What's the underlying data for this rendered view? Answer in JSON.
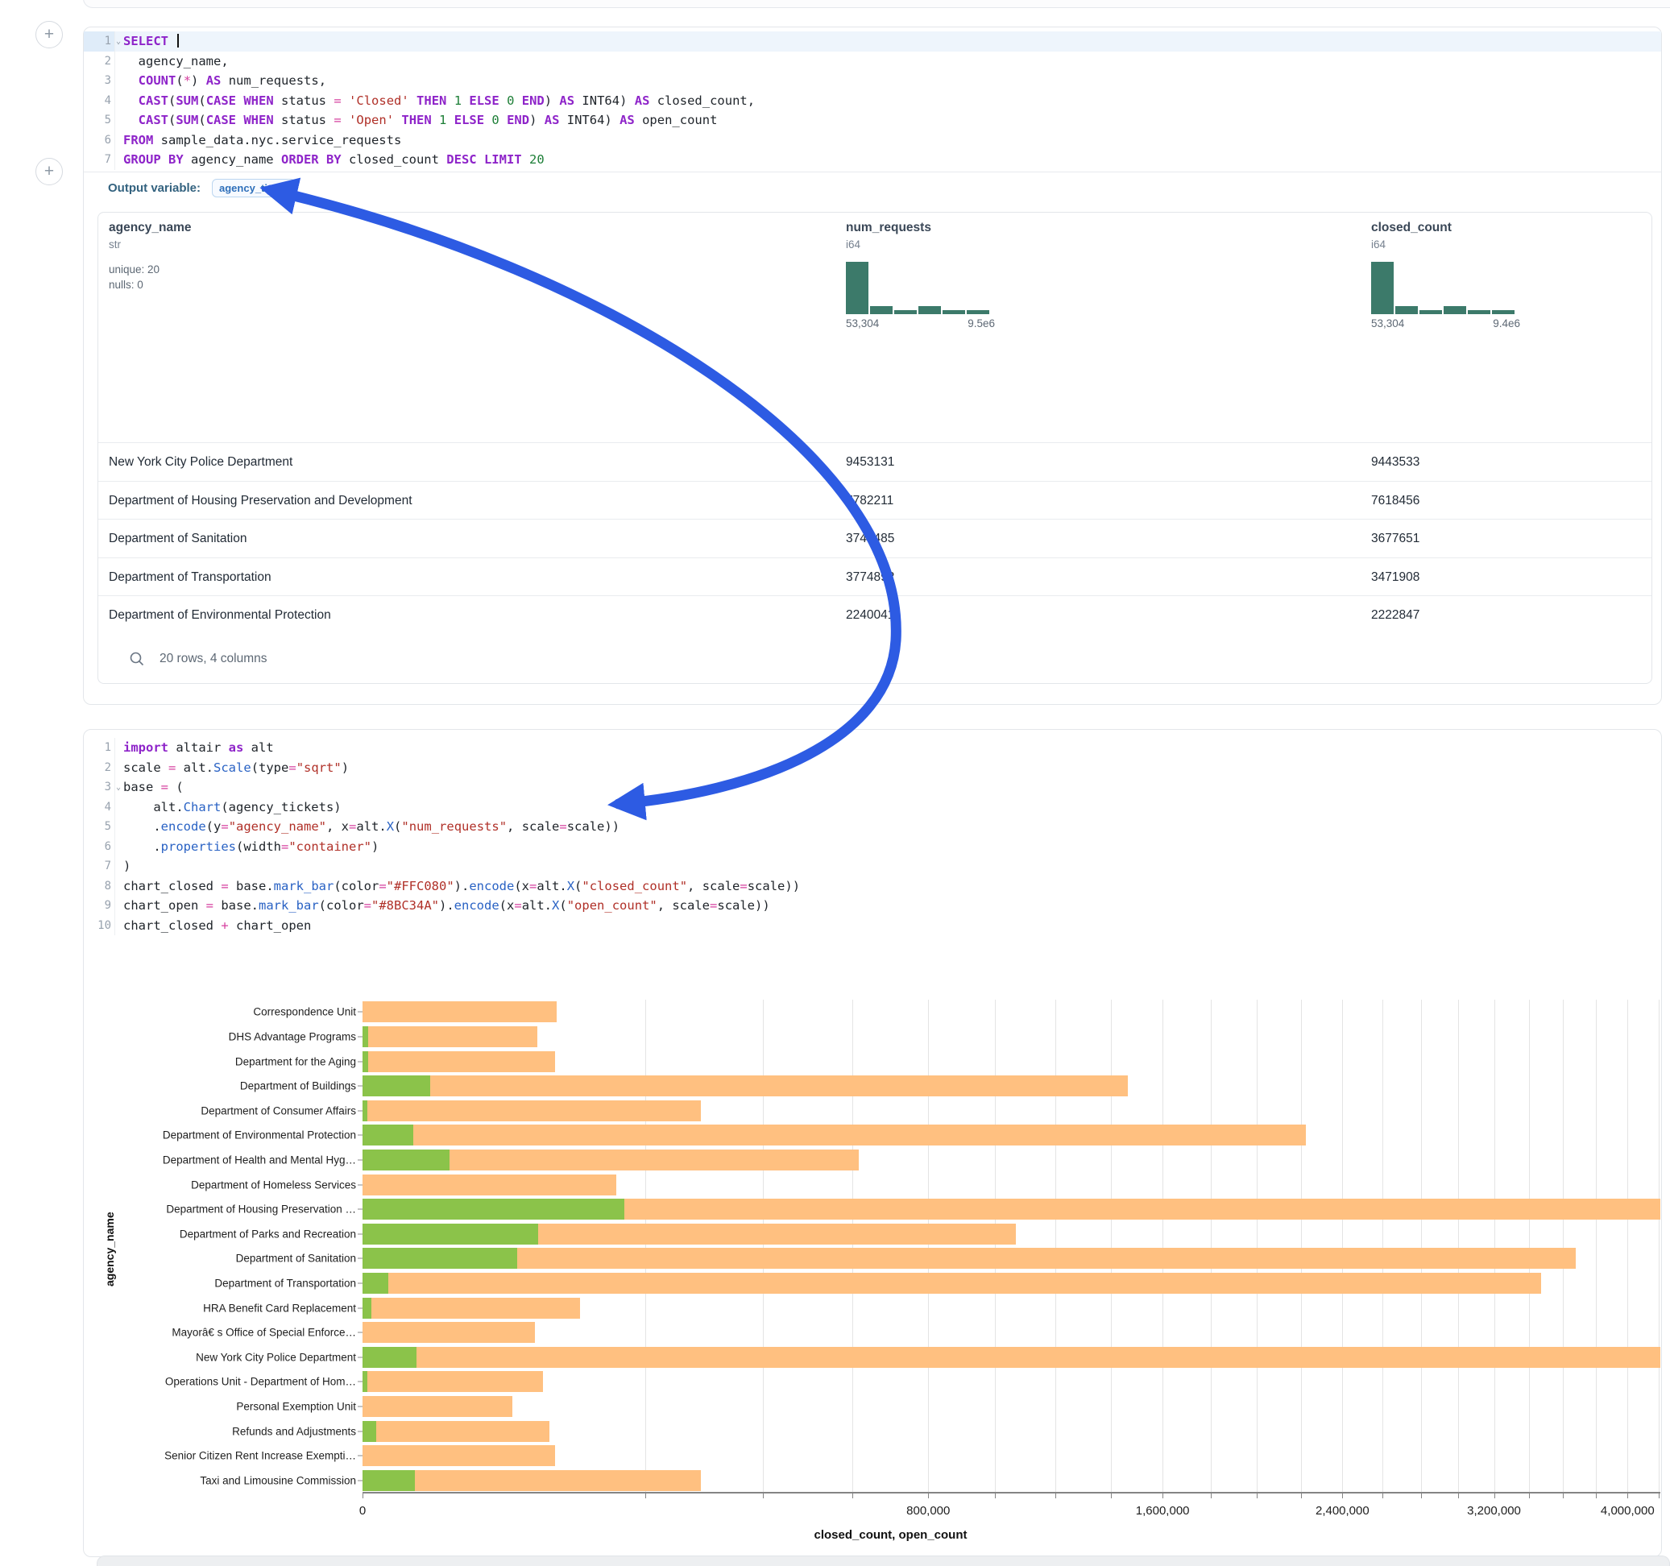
{
  "sql_cell": {
    "lines": [
      {
        "num": "1",
        "fold": true,
        "hl": true,
        "tokens": [
          [
            "kw",
            "SELECT"
          ],
          [
            "cur",
            ""
          ]
        ]
      },
      {
        "num": "2",
        "tokens": [
          [
            "pl",
            "  agency_name,"
          ]
        ]
      },
      {
        "num": "3",
        "tokens": [
          [
            "pl",
            "  "
          ],
          [
            "kw",
            "COUNT"
          ],
          [
            "pl",
            "("
          ],
          [
            "op",
            "*"
          ],
          [
            "pl",
            ") "
          ],
          [
            "kw",
            "AS"
          ],
          [
            "pl",
            " num_requests,"
          ]
        ]
      },
      {
        "num": "4",
        "tokens": [
          [
            "pl",
            "  "
          ],
          [
            "kw",
            "CAST"
          ],
          [
            "pl",
            "("
          ],
          [
            "kw",
            "SUM"
          ],
          [
            "pl",
            "("
          ],
          [
            "kw",
            "CASE WHEN"
          ],
          [
            "pl",
            " status "
          ],
          [
            "op",
            "="
          ],
          [
            "pl",
            " "
          ],
          [
            "str",
            "'Closed'"
          ],
          [
            "pl",
            " "
          ],
          [
            "kw",
            "THEN"
          ],
          [
            "pl",
            " "
          ],
          [
            "num",
            "1"
          ],
          [
            "pl",
            " "
          ],
          [
            "kw",
            "ELSE"
          ],
          [
            "pl",
            " "
          ],
          [
            "num",
            "0"
          ],
          [
            "pl",
            " "
          ],
          [
            "kw",
            "END"
          ],
          [
            "pl",
            ") "
          ],
          [
            "kw",
            "AS"
          ],
          [
            "pl",
            " INT64) "
          ],
          [
            "kw",
            "AS"
          ],
          [
            "pl",
            " closed_count,"
          ]
        ]
      },
      {
        "num": "5",
        "tokens": [
          [
            "pl",
            "  "
          ],
          [
            "kw",
            "CAST"
          ],
          [
            "pl",
            "("
          ],
          [
            "kw",
            "SUM"
          ],
          [
            "pl",
            "("
          ],
          [
            "kw",
            "CASE WHEN"
          ],
          [
            "pl",
            " status "
          ],
          [
            "op",
            "="
          ],
          [
            "pl",
            " "
          ],
          [
            "str",
            "'Open'"
          ],
          [
            "pl",
            " "
          ],
          [
            "kw",
            "THEN"
          ],
          [
            "pl",
            " "
          ],
          [
            "num",
            "1"
          ],
          [
            "pl",
            " "
          ],
          [
            "kw",
            "ELSE"
          ],
          [
            "pl",
            " "
          ],
          [
            "num",
            "0"
          ],
          [
            "pl",
            " "
          ],
          [
            "kw",
            "END"
          ],
          [
            "pl",
            ") "
          ],
          [
            "kw",
            "AS"
          ],
          [
            "pl",
            " INT64) "
          ],
          [
            "kw",
            "AS"
          ],
          [
            "pl",
            " open_count"
          ]
        ]
      },
      {
        "num": "6",
        "tokens": [
          [
            "kw",
            "FROM"
          ],
          [
            "pl",
            " sample_data.nyc.service_requests"
          ]
        ]
      },
      {
        "num": "7",
        "tokens": [
          [
            "kw",
            "GROUP BY"
          ],
          [
            "pl",
            " agency_name "
          ],
          [
            "kw",
            "ORDER BY"
          ],
          [
            "pl",
            " closed_count "
          ],
          [
            "kw",
            "DESC"
          ],
          [
            "pl",
            " "
          ],
          [
            "kw",
            "LIMIT"
          ],
          [
            "pl",
            " "
          ],
          [
            "num",
            "20"
          ]
        ]
      }
    ]
  },
  "output_variable": {
    "label": "Output variable:",
    "value": "agency_tickets"
  },
  "table": {
    "columns": [
      {
        "name": "agency_name",
        "type": "str",
        "stats": [
          "unique: 20",
          "nulls: 0"
        ]
      },
      {
        "name": "num_requests",
        "type": "i64",
        "hist": [
          1,
          0.15,
          0.07,
          0.15,
          0.07,
          0.07
        ],
        "hist_min": "53,304",
        "hist_max": "9.5e6"
      },
      {
        "name": "closed_count",
        "type": "i64",
        "hist": [
          1,
          0.16,
          0.08,
          0.16,
          0.08,
          0.08
        ],
        "hist_min": "53,304",
        "hist_max": "9.4e6"
      }
    ],
    "rows": [
      [
        "New York City Police Department",
        "9453131",
        "9443533"
      ],
      [
        "Department of Housing Preservation and Development",
        "7782211",
        "7618456"
      ],
      [
        "Department of Sanitation",
        "3749485",
        "3677651"
      ],
      [
        "Department of Transportation",
        "3774892",
        "3471908"
      ],
      [
        "Department of Environmental Protection",
        "2240041",
        "2222847"
      ]
    ],
    "footer": "20 rows, 4 columns"
  },
  "python_cell": {
    "lines": [
      {
        "num": "1",
        "tokens": [
          [
            "kw",
            "import"
          ],
          [
            "pl",
            " altair "
          ],
          [
            "kw",
            "as"
          ],
          [
            "pl",
            " alt"
          ]
        ]
      },
      {
        "num": "2",
        "tokens": [
          [
            "pl",
            "scale "
          ],
          [
            "op",
            "="
          ],
          [
            "pl",
            " alt."
          ],
          [
            "meth",
            "Scale"
          ],
          [
            "pl",
            "(type"
          ],
          [
            "op",
            "="
          ],
          [
            "str",
            "\"sqrt\""
          ],
          [
            "pl",
            ")"
          ]
        ]
      },
      {
        "num": "3",
        "fold": true,
        "tokens": [
          [
            "pl",
            "base "
          ],
          [
            "op",
            "="
          ],
          [
            "pl",
            " ("
          ]
        ]
      },
      {
        "num": "4",
        "tokens": [
          [
            "pl",
            "    alt."
          ],
          [
            "meth",
            "Chart"
          ],
          [
            "pl",
            "(agency_tickets)"
          ]
        ]
      },
      {
        "num": "5",
        "tokens": [
          [
            "pl",
            "    ."
          ],
          [
            "meth",
            "encode"
          ],
          [
            "pl",
            "(y"
          ],
          [
            "op",
            "="
          ],
          [
            "str",
            "\"agency_name\""
          ],
          [
            "pl",
            ", x"
          ],
          [
            "op",
            "="
          ],
          [
            "pl",
            "alt."
          ],
          [
            "meth",
            "X"
          ],
          [
            "pl",
            "("
          ],
          [
            "str",
            "\"num_requests\""
          ],
          [
            "pl",
            ", scale"
          ],
          [
            "op",
            "="
          ],
          [
            "pl",
            "scale))"
          ]
        ]
      },
      {
        "num": "6",
        "tokens": [
          [
            "pl",
            "    ."
          ],
          [
            "meth",
            "properties"
          ],
          [
            "pl",
            "(width"
          ],
          [
            "op",
            "="
          ],
          [
            "str",
            "\"container\""
          ],
          [
            "pl",
            ")"
          ]
        ]
      },
      {
        "num": "7",
        "tokens": [
          [
            "pl",
            ")"
          ]
        ]
      },
      {
        "num": "8",
        "tokens": [
          [
            "pl",
            "chart_closed "
          ],
          [
            "op",
            "="
          ],
          [
            "pl",
            " base."
          ],
          [
            "meth",
            "mark_bar"
          ],
          [
            "pl",
            "(color"
          ],
          [
            "op",
            "="
          ],
          [
            "str",
            "\"#FFC080\""
          ],
          [
            "pl",
            ")."
          ],
          [
            "meth",
            "encode"
          ],
          [
            "pl",
            "(x"
          ],
          [
            "op",
            "="
          ],
          [
            "pl",
            "alt."
          ],
          [
            "meth",
            "X"
          ],
          [
            "pl",
            "("
          ],
          [
            "str",
            "\"closed_count\""
          ],
          [
            "pl",
            ", scale"
          ],
          [
            "op",
            "="
          ],
          [
            "pl",
            "scale))"
          ]
        ]
      },
      {
        "num": "9",
        "tokens": [
          [
            "pl",
            "chart_open "
          ],
          [
            "op",
            "="
          ],
          [
            "pl",
            " base."
          ],
          [
            "meth",
            "mark_bar"
          ],
          [
            "pl",
            "(color"
          ],
          [
            "op",
            "="
          ],
          [
            "str",
            "\"#8BC34A\""
          ],
          [
            "pl",
            ")."
          ],
          [
            "meth",
            "encode"
          ],
          [
            "pl",
            "(x"
          ],
          [
            "op",
            "="
          ],
          [
            "pl",
            "alt."
          ],
          [
            "meth",
            "X"
          ],
          [
            "pl",
            "("
          ],
          [
            "str",
            "\"open_count\""
          ],
          [
            "pl",
            ", scale"
          ],
          [
            "op",
            "="
          ],
          [
            "pl",
            "scale))"
          ]
        ]
      },
      {
        "num": "10",
        "tokens": [
          [
            "pl",
            "chart_closed "
          ],
          [
            "op",
            "+"
          ],
          [
            "pl",
            " chart_open"
          ]
        ]
      }
    ]
  },
  "chart_data": {
    "type": "bar",
    "orientation": "horizontal",
    "x_scale": "sqrt",
    "title": "",
    "xlabel": "closed_count, open_count",
    "ylabel": "agency_name",
    "x_domain": [
      0,
      4210000
    ],
    "x_major_ticks": [
      {
        "v": 0,
        "label": "0"
      },
      {
        "v": 800000,
        "label": "800,000"
      },
      {
        "v": 1600000,
        "label": "1,600,000"
      },
      {
        "v": 2400000,
        "label": "2,400,000"
      },
      {
        "v": 3200000,
        "label": "3,200,000"
      },
      {
        "v": 4000000,
        "label": "4,000,000"
      }
    ],
    "x_minor_step": 200000,
    "x_minor_max": 4200000,
    "grid": true,
    "categories": [
      "Correspondence Unit",
      "DHS Advantage Programs",
      "Department for the Aging",
      "Department of Buildings",
      "Department of Consumer Affairs",
      "Department of Environmental Protection",
      "Department of Health and Mental Hyg…",
      "Department of Homeless Services",
      "Department of Housing Preservation …",
      "Department of Parks and Recreation",
      "Department of Sanitation",
      "Department of Transportation",
      "HRA Benefit Card Replacement",
      "Mayorâ€ s Office of Special Enforce…",
      "New York City Police Department",
      "Operations Unit - Department of Hom…",
      "Personal Exemption Unit",
      "Refunds and Adjustments",
      "Senior Citizen Rent Increase Exempti…",
      "Taxi and Limousine Commission"
    ],
    "series": [
      {
        "name": "closed_count",
        "color": "#FFC080",
        "values": [
          94000,
          76000,
          93000,
          1465000,
          286000,
          2222847,
          616000,
          161000,
          7618456,
          1067000,
          3677651,
          3471908,
          118000,
          74000,
          9443533,
          81000,
          56000,
          87000,
          93000,
          286000
        ]
      },
      {
        "name": "open_count",
        "color": "#8BC34A",
        "values": [
          0,
          80,
          80,
          11400,
          60,
          6400,
          18900,
          0,
          171000,
          77000,
          60000,
          1700,
          200,
          0,
          7300,
          60,
          0,
          470,
          0,
          6900
        ]
      }
    ]
  },
  "annotation": {
    "arrow_color": "#2d5be3"
  },
  "icons": {
    "plus": "+",
    "search": "search"
  }
}
